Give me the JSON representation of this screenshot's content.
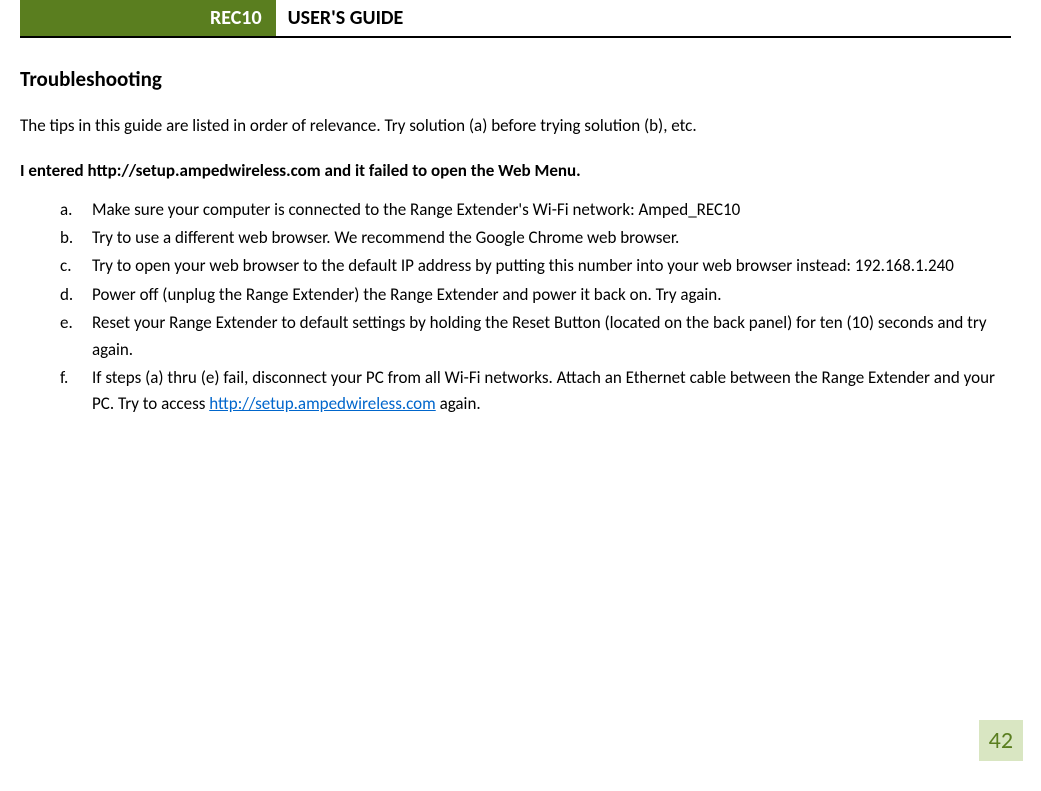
{
  "header": {
    "product_label": "REC10",
    "guide_title": "USER'S GUIDE"
  },
  "content": {
    "section_title": "Troubleshooting",
    "intro": "The tips in this guide are listed in order of relevance. Try solution (a) before trying solution (b), etc.",
    "subheading": "I entered http://setup.ampedwireless.com and it failed to open the Web Menu.",
    "solutions": [
      {
        "marker": "a.",
        "text": "Make sure your computer is connected to the Range Extender's Wi-Fi network: Amped_REC10"
      },
      {
        "marker": "b.",
        "text": "Try to use a different web browser. We recommend the Google Chrome web browser."
      },
      {
        "marker": "c.",
        "text": "Try to open your web browser to the default IP address by putting this number into your web browser instead: 192.168.1.240"
      },
      {
        "marker": "d.",
        "text": "Power off (unplug the Range Extender) the Range Extender and power it back on. Try again."
      },
      {
        "marker": "e.",
        "text": "Reset your Range Extender to default settings by holding the Reset Button (located on the back panel) for ten (10) seconds and try again."
      },
      {
        "marker": "f.",
        "text_before": "If steps (a) thru (e) fail, disconnect your PC from all Wi-Fi networks. Attach an Ethernet cable between the Range Extender and your PC. Try to access ",
        "link_text": "http://setup.ampedwireless.com",
        "text_after": " again."
      }
    ]
  },
  "page_number": "42",
  "colors": {
    "header_bg": "#5a7e1f",
    "header_text": "#ffffff",
    "body_text": "#000000",
    "link_color": "#0066cc",
    "page_num_bg": "#d9e6c2",
    "page_num_text": "#5a7e1f"
  }
}
